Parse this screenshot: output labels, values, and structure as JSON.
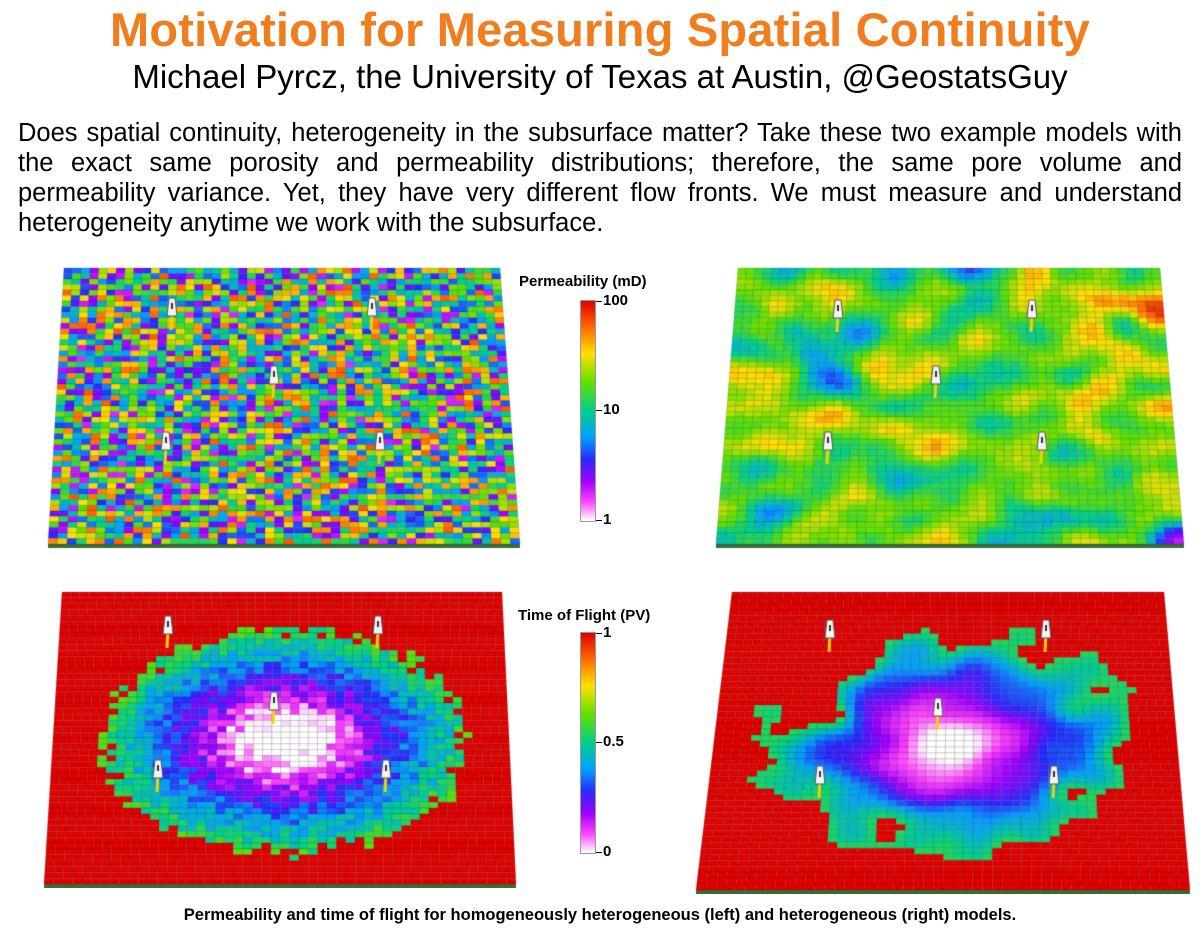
{
  "title": "Motivation for Measuring Spatial Continuity",
  "subtitle": "Michael Pyrcz, the University of Texas at Austin, @GeostatsGuy",
  "intro": "Does spatial continuity, heterogeneity in the subsurface matter?  Take these two example models with the exact same porosity and permeability distributions; therefore, the same pore volume and permeability variance.  Yet, they have very different flow fronts.  We must measure and understand heterogeneity anytime we work with the subsurface.",
  "permeability_colorbar": {
    "title": "Permeability (mD)",
    "ticks": [
      "100",
      "10",
      "1"
    ]
  },
  "tof_colorbar": {
    "title": "Time of Flight (PV)",
    "ticks": [
      "1",
      "0.5",
      "0"
    ]
  },
  "caption": "Permeability and time of flight for homogeneously heterogeneous (left) and heterogeneous (right) models.",
  "panels": {
    "perm_left": {
      "label": "Homogeneously heterogeneous permeability model",
      "wells": 5
    },
    "perm_right": {
      "label": "Heterogeneous permeability model",
      "wells": 5
    },
    "tof_left": {
      "label": "Time of flight, homogeneously heterogeneous model",
      "wells": 5
    },
    "tof_right": {
      "label": "Time of flight, heterogeneous model",
      "wells": 5
    }
  }
}
